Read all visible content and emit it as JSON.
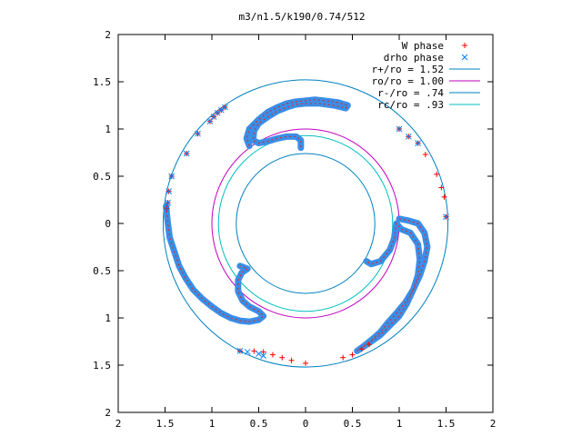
{
  "chart_data": {
    "type": "scatter",
    "title": "m3/n1.5/k190/0.74/512",
    "xlim": [
      -2,
      2
    ],
    "ylim": [
      -2,
      2
    ],
    "x_ticks": [
      -2,
      -1.5,
      -1,
      -0.5,
      0,
      0.5,
      1,
      1.5,
      2
    ],
    "y_ticks": [
      -2,
      -1.5,
      -1,
      -0.5,
      0,
      0.5,
      1,
      1.5,
      2
    ],
    "x_tick_labels": [
      "2",
      "1.5",
      "1",
      "0.5",
      "0",
      "0.5",
      "1",
      "1.5",
      "2"
    ],
    "y_tick_labels": [
      "2",
      "1.5",
      "1",
      "0.5",
      "0",
      "0.5",
      "1",
      "1.5",
      "2"
    ],
    "grid": false,
    "legend_position": "top-right",
    "legend": [
      {
        "label": "W phase",
        "color": "#ff0000",
        "marker": "+"
      },
      {
        "label": "drho phase",
        "color": "#0080ff",
        "marker": "x"
      },
      {
        "label": "r+/ro = 1.52",
        "color": "#0080c0",
        "marker": "line"
      },
      {
        "label": "ro/ro = 1.00",
        "color": "#c000c0",
        "marker": "line"
      },
      {
        "label": "r-/ro = .74",
        "color": "#0080c0",
        "marker": "line"
      },
      {
        "label": "rc/ro = .93",
        "color": "#00c0c0",
        "marker": "line"
      }
    ],
    "circles": [
      {
        "name": "r+/ro = 1.52",
        "radius": 1.52,
        "color": "#0080c0"
      },
      {
        "name": "ro/ro = 1.00",
        "radius": 1.0,
        "color": "#c000c0"
      },
      {
        "name": "r-/ro = .74",
        "radius": 0.74,
        "color": "#0080c0"
      },
      {
        "name": "rc/ro = .93",
        "radius": 0.93,
        "color": "#00c0c0"
      }
    ],
    "series": [
      {
        "name": "W phase",
        "color": "#ff0000",
        "marker": "+",
        "points": [
          [
            -1.48,
            0.16
          ],
          [
            -1.47,
            0.22
          ],
          [
            -1.46,
            0.34
          ],
          [
            -1.43,
            0.5
          ],
          [
            -1.27,
            0.74
          ],
          [
            -1.15,
            0.95
          ],
          [
            -1.02,
            1.08
          ],
          [
            -0.98,
            1.13
          ],
          [
            -0.94,
            1.17
          ],
          [
            -0.9,
            1.2
          ],
          [
            -0.86,
            1.23
          ],
          [
            0.0,
            -1.48
          ],
          [
            -0.15,
            -1.45
          ],
          [
            -0.25,
            -1.42
          ],
          [
            -0.35,
            -1.39
          ],
          [
            -0.45,
            -1.36
          ],
          [
            -0.55,
            -1.35
          ],
          [
            -0.7,
            -1.35
          ],
          [
            0.4,
            -1.42
          ],
          [
            0.5,
            -1.39
          ],
          [
            0.6,
            -1.33
          ],
          [
            0.68,
            -1.28
          ],
          [
            1.0,
            1.0
          ],
          [
            1.1,
            0.92
          ],
          [
            1.2,
            0.85
          ],
          [
            1.28,
            0.73
          ],
          [
            1.4,
            0.52
          ],
          [
            1.45,
            0.38
          ],
          [
            1.48,
            0.28
          ],
          [
            1.5,
            0.07
          ]
        ]
      },
      {
        "name": "drho phase",
        "color": "#0080ff",
        "marker": "x",
        "points": [
          [
            -1.48,
            0.16
          ],
          [
            -1.47,
            0.22
          ],
          [
            -1.46,
            0.34
          ],
          [
            -1.43,
            0.5
          ],
          [
            -1.27,
            0.74
          ],
          [
            -1.15,
            0.95
          ],
          [
            -1.02,
            1.08
          ],
          [
            -0.98,
            1.13
          ],
          [
            -0.94,
            1.17
          ],
          [
            -0.9,
            1.2
          ],
          [
            -0.86,
            1.23
          ],
          [
            -0.7,
            -1.35
          ],
          [
            -0.62,
            -1.36
          ],
          [
            -0.5,
            -1.38
          ],
          [
            -0.45,
            -1.4
          ],
          [
            1.0,
            1.0
          ],
          [
            1.1,
            0.92
          ],
          [
            1.2,
            0.85
          ],
          [
            1.5,
            0.07
          ]
        ]
      }
    ],
    "curves": [
      {
        "name": "upper-arc",
        "points": [
          [
            -0.6,
            0.82
          ],
          [
            -0.63,
            0.9
          ],
          [
            -0.6,
            1.0
          ],
          [
            -0.5,
            1.1
          ],
          [
            -0.4,
            1.18
          ],
          [
            -0.3,
            1.23
          ],
          [
            -0.2,
            1.27
          ],
          [
            -0.1,
            1.29
          ],
          [
            0.0,
            1.3
          ],
          [
            0.1,
            1.31
          ],
          [
            0.2,
            1.3
          ],
          [
            0.35,
            1.28
          ],
          [
            0.45,
            1.25
          ],
          [
            0.43,
            1.22
          ],
          [
            0.3,
            1.25
          ],
          [
            0.15,
            1.27
          ],
          [
            0.0,
            1.27
          ],
          [
            -0.1,
            1.26
          ],
          [
            -0.2,
            1.23
          ],
          [
            -0.3,
            1.19
          ],
          [
            -0.4,
            1.13
          ],
          [
            -0.5,
            1.06
          ],
          [
            -0.55,
            0.98
          ],
          [
            -0.56,
            0.88
          ],
          [
            -0.5,
            0.85
          ],
          [
            -0.4,
            0.87
          ],
          [
            -0.3,
            0.9
          ],
          [
            -0.2,
            0.92
          ],
          [
            -0.1,
            0.92
          ],
          [
            -0.05,
            0.88
          ],
          [
            -0.05,
            0.8
          ]
        ]
      },
      {
        "name": "left-arc",
        "points": [
          [
            -1.49,
            0.18
          ],
          [
            -1.47,
            0.0
          ],
          [
            -1.45,
            -0.15
          ],
          [
            -1.4,
            -0.3
          ],
          [
            -1.35,
            -0.45
          ],
          [
            -1.28,
            -0.58
          ],
          [
            -1.2,
            -0.7
          ],
          [
            -1.1,
            -0.8
          ],
          [
            -1.0,
            -0.88
          ],
          [
            -0.9,
            -0.95
          ],
          [
            -0.8,
            -1.0
          ],
          [
            -0.7,
            -1.03
          ],
          [
            -0.6,
            -1.04
          ],
          [
            -0.5,
            -1.02
          ],
          [
            -0.45,
            -0.98
          ],
          [
            -0.5,
            -0.93
          ],
          [
            -0.6,
            -0.88
          ],
          [
            -0.67,
            -0.82
          ],
          [
            -0.72,
            -0.72
          ],
          [
            -0.72,
            -0.6
          ],
          [
            -0.68,
            -0.52
          ],
          [
            -0.62,
            -0.48
          ],
          [
            -0.7,
            -0.45
          ]
        ]
      },
      {
        "name": "right-arc",
        "points": [
          [
            1.0,
            0.05
          ],
          [
            1.1,
            0.03
          ],
          [
            1.2,
            0.0
          ],
          [
            1.27,
            -0.1
          ],
          [
            1.3,
            -0.25
          ],
          [
            1.27,
            -0.4
          ],
          [
            1.22,
            -0.55
          ],
          [
            1.15,
            -0.7
          ],
          [
            1.07,
            -0.83
          ],
          [
            0.97,
            -0.95
          ],
          [
            0.88,
            -1.05
          ],
          [
            0.8,
            -1.15
          ],
          [
            0.72,
            -1.22
          ],
          [
            0.62,
            -1.3
          ],
          [
            0.55,
            -1.35
          ],
          [
            0.7,
            -1.25
          ],
          [
            0.8,
            -1.18
          ],
          [
            0.9,
            -1.08
          ],
          [
            1.0,
            -0.98
          ],
          [
            1.08,
            -0.85
          ],
          [
            1.15,
            -0.7
          ],
          [
            1.2,
            -0.55
          ],
          [
            1.22,
            -0.38
          ],
          [
            1.2,
            -0.22
          ],
          [
            1.12,
            -0.1
          ],
          [
            1.02,
            -0.06
          ],
          [
            0.97,
            0.0
          ],
          [
            0.95,
            -0.15
          ],
          [
            0.9,
            -0.28
          ],
          [
            0.8,
            -0.4
          ],
          [
            0.7,
            -0.43
          ],
          [
            0.65,
            -0.4
          ]
        ]
      }
    ]
  }
}
